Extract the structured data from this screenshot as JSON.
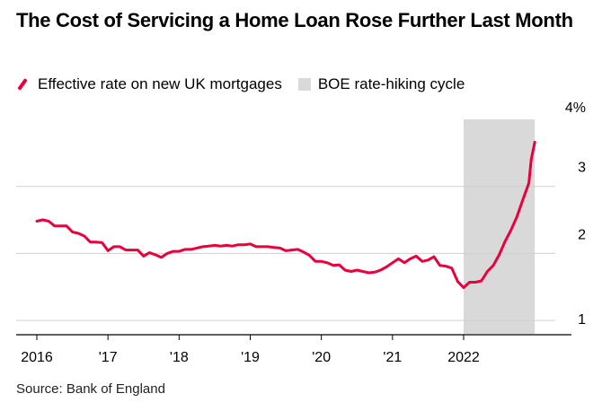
{
  "title": "The Cost of Servicing a Home Loan Rose Further Last Month",
  "source": "Source: Bank of England",
  "chart_data": {
    "type": "line",
    "x_ticks": [
      "2016",
      "'17",
      "'18",
      "'19",
      "'20",
      "'21",
      "2022"
    ],
    "y_ticks": [
      "1",
      "2",
      "3",
      "4%"
    ],
    "ylim": [
      0.8,
      4.0
    ],
    "xlim": [
      2015.9,
      2023.5
    ],
    "grid": true,
    "legend_position": "top-left",
    "colors": {
      "line": "#e8003d",
      "band": "#d9d9d9"
    },
    "shaded_band": {
      "name": "BOE rate-hiking cycle",
      "start": 2022.0,
      "end": 2023.0
    },
    "series": [
      {
        "name": "Effective rate on new UK mortgages",
        "x": [
          2016.0,
          2016.083,
          2016.167,
          2016.25,
          2016.333,
          2016.417,
          2016.5,
          2016.583,
          2016.667,
          2016.75,
          2016.833,
          2016.917,
          2017.0,
          2017.083,
          2017.167,
          2017.25,
          2017.333,
          2017.417,
          2017.5,
          2017.583,
          2017.667,
          2017.75,
          2017.833,
          2017.917,
          2018.0,
          2018.083,
          2018.167,
          2018.25,
          2018.333,
          2018.417,
          2018.5,
          2018.583,
          2018.667,
          2018.75,
          2018.833,
          2018.917,
          2019.0,
          2019.083,
          2019.167,
          2019.25,
          2019.333,
          2019.417,
          2019.5,
          2019.583,
          2019.667,
          2019.75,
          2019.833,
          2019.917,
          2020.0,
          2020.083,
          2020.167,
          2020.25,
          2020.333,
          2020.417,
          2020.5,
          2020.583,
          2020.667,
          2020.75,
          2020.833,
          2020.917,
          2021.0,
          2021.083,
          2021.167,
          2021.25,
          2021.333,
          2021.417,
          2021.5,
          2021.583,
          2021.667,
          2021.75,
          2021.833,
          2021.917,
          2022.0,
          2022.083,
          2022.167,
          2022.25,
          2022.333,
          2022.417,
          2022.5,
          2022.583,
          2022.667,
          2022.75,
          2022.833,
          2022.917
        ],
        "values": [
          2.48,
          2.5,
          2.48,
          2.41,
          2.41,
          2.41,
          2.32,
          2.3,
          2.26,
          2.17,
          2.17,
          2.16,
          2.04,
          2.1,
          2.1,
          2.05,
          2.05,
          2.05,
          1.96,
          2.01,
          1.98,
          1.94,
          2.0,
          2.03,
          2.03,
          2.06,
          2.06,
          2.08,
          2.1,
          2.11,
          2.12,
          2.11,
          2.12,
          2.11,
          2.13,
          2.13,
          2.14,
          2.1,
          2.1,
          2.1,
          2.09,
          2.08,
          2.04,
          2.05,
          2.06,
          2.02,
          1.97,
          1.88,
          1.88,
          1.86,
          1.82,
          1.83,
          1.75,
          1.73,
          1.75,
          1.73,
          1.71,
          1.72,
          1.75,
          1.8,
          1.86,
          1.92,
          1.86,
          1.92,
          1.96,
          1.88,
          1.9,
          1.95,
          1.82,
          1.81,
          1.78,
          1.58,
          1.49,
          1.57,
          1.57,
          1.59,
          1.73,
          1.82,
          1.98,
          2.18,
          2.35,
          2.55,
          2.8,
          3.05
        ]
      }
    ],
    "series_tail": {
      "x": [
        2022.95,
        2023.0
      ],
      "values": [
        3.4,
        3.66
      ]
    }
  }
}
